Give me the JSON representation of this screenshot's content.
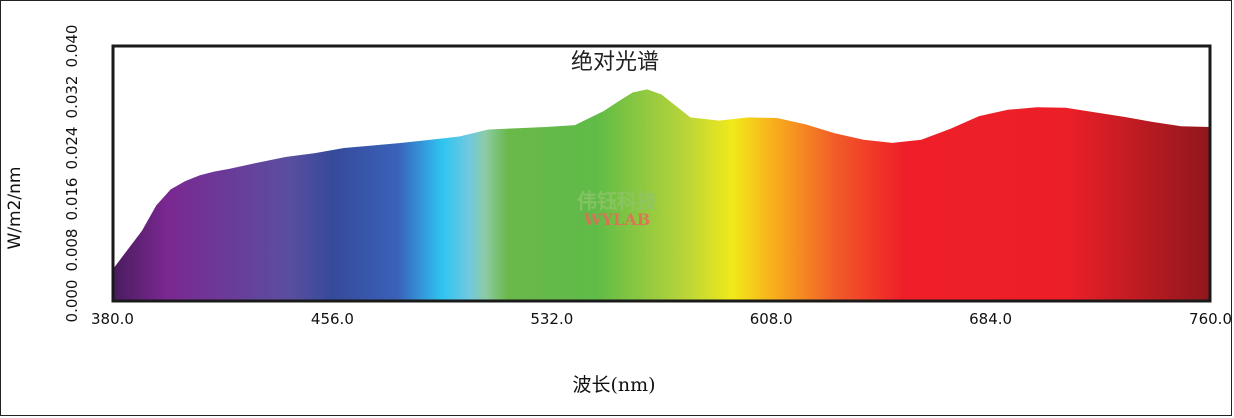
{
  "chart_data": {
    "type": "area",
    "title": "绝对光谱",
    "xlabel": "波长(nm)",
    "ylabel": "W/m2/nm",
    "xlim": [
      380.0,
      760.0
    ],
    "ylim": [
      0.0,
      0.04
    ],
    "x_ticks": [
      "380.0",
      "456.0",
      "532.0",
      "608.0",
      "684.0",
      "760.0"
    ],
    "y_ticks": [
      "0.000",
      "0.008",
      "0.016",
      "0.024",
      "0.032",
      "0.040"
    ],
    "grid": false,
    "fill": "visible-spectrum gradient",
    "watermark": {
      "cn": "伟钰科技",
      "en": "WYLAB"
    },
    "series": [
      {
        "x": [
          380,
          385,
          390,
          395,
          400,
          405,
          410,
          415,
          420,
          430,
          440,
          450,
          460,
          470,
          480,
          490,
          500,
          510,
          520,
          530,
          540,
          550,
          555,
          560,
          565,
          570,
          580,
          590,
          600,
          610,
          620,
          630,
          640,
          650,
          660,
          670,
          680,
          690,
          700,
          710,
          720,
          730,
          740,
          750,
          760
        ],
        "y": [
          0.005,
          0.008,
          0.011,
          0.015,
          0.0175,
          0.0188,
          0.0197,
          0.0203,
          0.0207,
          0.0217,
          0.0226,
          0.0232,
          0.024,
          0.0244,
          0.0248,
          0.0253,
          0.0258,
          0.0269,
          0.0271,
          0.0273,
          0.0276,
          0.0298,
          0.0313,
          0.0327,
          0.0332,
          0.0324,
          0.0288,
          0.0283,
          0.0288,
          0.0287,
          0.0277,
          0.0263,
          0.0253,
          0.0248,
          0.0253,
          0.027,
          0.029,
          0.03,
          0.0304,
          0.0303,
          0.0296,
          0.0289,
          0.0281,
          0.0274,
          0.0273
        ]
      }
    ]
  }
}
